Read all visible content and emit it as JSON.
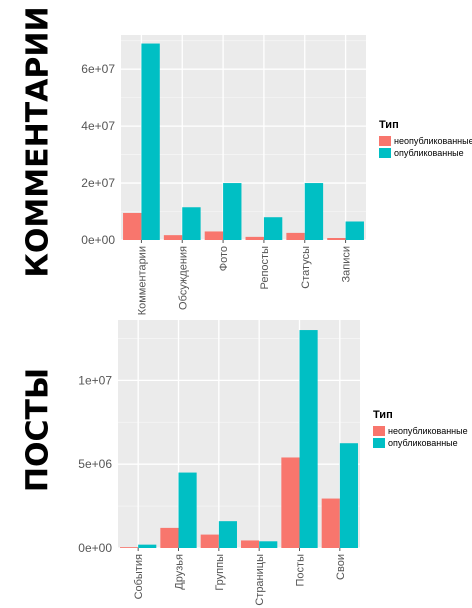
{
  "titles": {
    "top": "КОММЕНТАРИИ",
    "bottom": "ПОСТЫ"
  },
  "colors": {
    "unpublished": "#F8766D",
    "published": "#00BFC4",
    "panel": "#EBEBEB",
    "grid": "#FFFFFF"
  },
  "chart_data": [
    {
      "type": "bar",
      "categories": [
        "Комментарии",
        "Обсуждения",
        "Фото",
        "Репосты",
        "Статусы",
        "Записи"
      ],
      "series": [
        {
          "name": "неопубликованные",
          "values": [
            9500000,
            1700000,
            3000000,
            1100000,
            2500000,
            700000
          ]
        },
        {
          "name": "опубликованные",
          "values": [
            69000000,
            11500000,
            20000000,
            8000000,
            20000000,
            6500000
          ]
        }
      ],
      "yticks": [
        0,
        20000000,
        40000000,
        60000000
      ],
      "ytick_labels": [
        "0e+00",
        "2e+07",
        "4e+07",
        "6e+07"
      ],
      "ylim": [
        0,
        72000000
      ],
      "legend": {
        "title": "Тип",
        "position": "right"
      },
      "grid": true
    },
    {
      "type": "bar",
      "categories": [
        "События",
        "Друзья",
        "Группы",
        "Страницы",
        "Посты",
        "Свои"
      ],
      "series": [
        {
          "name": "неопубликованные",
          "values": [
            50000,
            1200000,
            800000,
            450000,
            5400000,
            2950000
          ]
        },
        {
          "name": "опубликованные",
          "values": [
            200000,
            4500000,
            1600000,
            400000,
            13000000,
            6250000
          ]
        }
      ],
      "yticks": [
        0,
        5000000,
        10000000
      ],
      "ytick_labels": [
        "0e+00",
        "5e+06",
        "1e+07"
      ],
      "ylim": [
        0,
        13600000
      ],
      "legend": {
        "title": "Тип",
        "position": "right"
      },
      "grid": true
    }
  ]
}
